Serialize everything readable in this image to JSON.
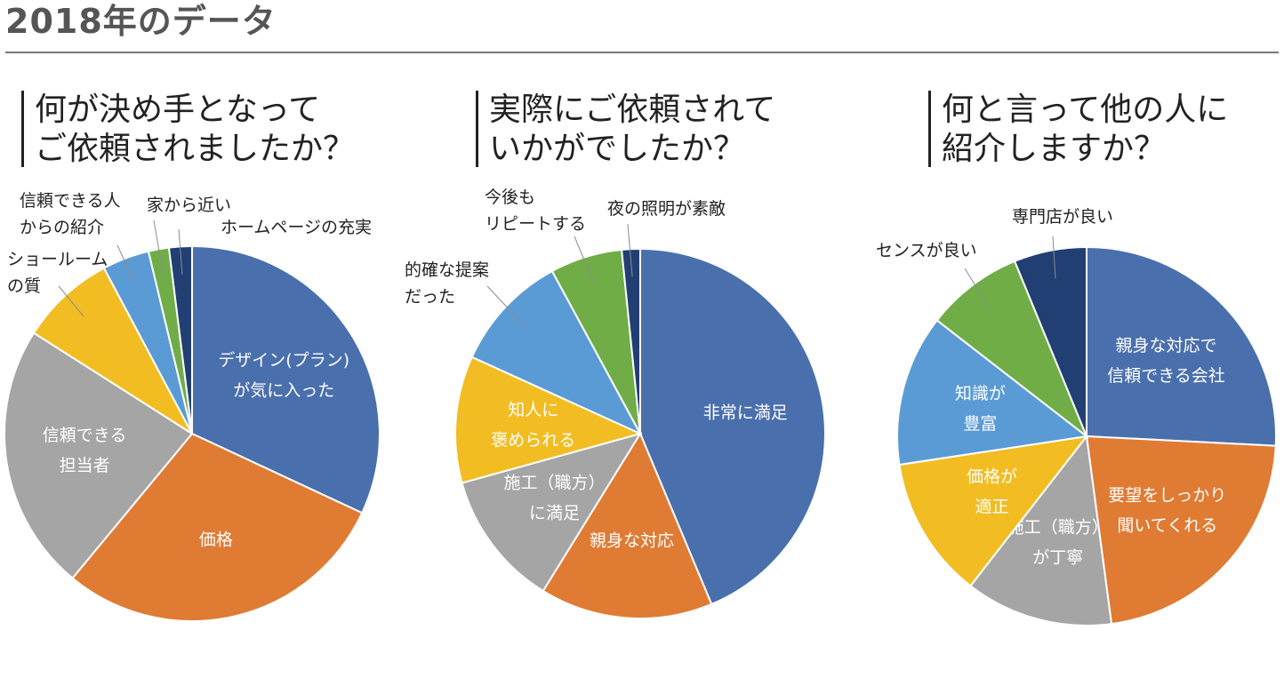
{
  "page": {
    "title": "2018年のデータ"
  },
  "chart_data": [
    {
      "type": "pie",
      "title_lines": [
        "何が決め手となって",
        "ご依頼されましたか？"
      ],
      "slices": [
        {
          "label": "デザイン(プラン)\nが気に入った",
          "value": 30.8,
          "color": "#4a6fad",
          "label_inside": true
        },
        {
          "label": "価格",
          "value": 28.0,
          "color": "#e07b34",
          "label_inside": true
        },
        {
          "label": "信頼できる\n担当者",
          "value": 22.2,
          "color": "#a5a5a5",
          "label_inside": true
        },
        {
          "label": "ショールーム\nの質",
          "value": 7.9,
          "color": "#f2bd23",
          "label_inside": false
        },
        {
          "label": "信頼できる人\nからの紹介",
          "value": 3.9,
          "color": "#5b9bd5",
          "label_inside": false
        },
        {
          "label": "家から近い",
          "value": 1.7,
          "color": "#70ad47",
          "label_inside": false
        },
        {
          "label": "ホームページの充実",
          "value": 1.9,
          "color": "#223f73",
          "label_inside": false
        }
      ]
    },
    {
      "type": "pie",
      "title_lines": [
        "実際にご依頼されて",
        "いかがでしたか？"
      ],
      "slices": [
        {
          "label": "非常に満足",
          "value": 43.7,
          "color": "#4a6fad",
          "label_inside": true
        },
        {
          "label": "親身な対応",
          "value": 15.1,
          "color": "#e07b34",
          "label_inside": true
        },
        {
          "label": "施工（職方）\nに満足",
          "value": 11.9,
          "color": "#a5a5a5",
          "label_inside": true
        },
        {
          "label": "知人に\n褒められる",
          "value": 11.1,
          "color": "#f2bd23",
          "label_inside": true
        },
        {
          "label": "的確な提案\nだった",
          "value": 10.3,
          "color": "#5b9bd5",
          "label_inside": false
        },
        {
          "label": "今後も\nリピートする",
          "value": 6.3,
          "color": "#70ad47",
          "label_inside": false
        },
        {
          "label": "夜の照明が素敵",
          "value": 1.6,
          "color": "#223f73",
          "label_inside": false
        }
      ]
    },
    {
      "type": "pie",
      "title_lines": [
        "何と言って他の人に",
        "紹介しますか？"
      ],
      "slices": [
        {
          "label": "親身な対応で\n信頼できる会社",
          "value": 25.8,
          "color": "#4a6fad",
          "label_inside": true
        },
        {
          "label": "要望をしっかり\n聞いてくれる",
          "value": 22.1,
          "color": "#e07b34",
          "label_inside": true
        },
        {
          "label": "施工（職方）\nが丁寧",
          "value": 12.6,
          "color": "#a5a5a5",
          "label_inside": true
        },
        {
          "label": "価格が\n適正",
          "value": 12.1,
          "color": "#f2bd23",
          "label_inside": true
        },
        {
          "label": "知識が\n豊富",
          "value": 12.9,
          "color": "#5b9bd5",
          "label_inside": true
        },
        {
          "label": "センスが良い",
          "value": 8.3,
          "color": "#70ad47",
          "label_inside": false
        },
        {
          "label": "専門店が良い",
          "value": 6.2,
          "color": "#223f73",
          "label_inside": false
        }
      ]
    }
  ]
}
